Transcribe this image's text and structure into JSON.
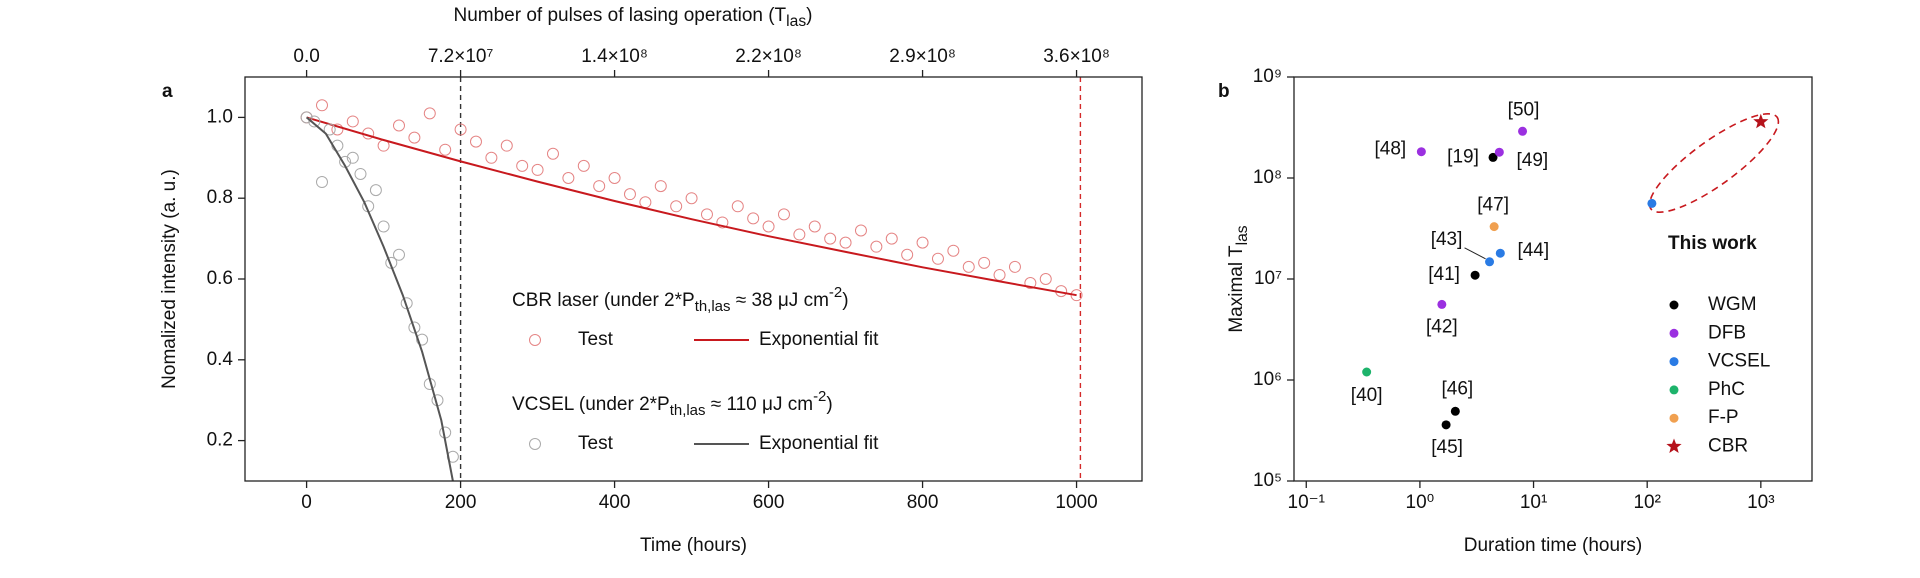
{
  "chart_data": [
    {
      "type": "scatter",
      "panel_label": "a",
      "xlabel": "Time (hours)",
      "ylabel": "Nomalized intensity (a. u.)",
      "x2label_parts": [
        "Number of pulses of lasing operation (T",
        "las",
        ")"
      ],
      "xlim": [
        -80,
        1085
      ],
      "xticks": [
        0,
        200,
        400,
        600,
        800,
        1000
      ],
      "x2lim": [
        -28800000,
        390600000
      ],
      "x2ticks": [
        {
          "value": 0,
          "label": "0.0"
        },
        {
          "value": 72000000,
          "label": "7.2×10⁷"
        },
        {
          "value": 144000000,
          "label": "1.4×10⁸"
        },
        {
          "value": 216000000,
          "label": "2.2×10⁸"
        },
        {
          "value": 288000000,
          "label": "2.9×10⁸"
        },
        {
          "value": 360000000,
          "label": "3.6×10⁸"
        }
      ],
      "ylim": [
        0.1,
        1.1
      ],
      "yticks": [
        0.2,
        0.4,
        0.6,
        0.8,
        {
          "value": 1,
          "label": "1.0"
        }
      ],
      "ref_lines": [
        {
          "x": 200,
          "color": "#333333"
        },
        {
          "x": 1005,
          "color": "#d42a2a"
        }
      ],
      "legend_groups": [
        [
          "CBR laser (under 2*P",
          "th,las",
          " ≈ 38 μJ cm",
          "-2",
          ")"
        ],
        [
          "VCSEL (under 2*P",
          "th,las",
          " ≈ 110 μJ cm",
          "-2",
          ")"
        ]
      ],
      "series": [
        {
          "name": "Test",
          "group": 0,
          "style": "open-circle",
          "color": "#e58585",
          "x": [
            0,
            20,
            40,
            60,
            80,
            100,
            120,
            140,
            160,
            180,
            200,
            220,
            240,
            260,
            280,
            300,
            320,
            340,
            360,
            380,
            400,
            420,
            440,
            460,
            480,
            500,
            520,
            540,
            560,
            580,
            600,
            620,
            640,
            660,
            680,
            700,
            720,
            740,
            760,
            780,
            800,
            820,
            840,
            860,
            880,
            900,
            920,
            940,
            960,
            980,
            1000
          ],
          "values": [
            1.0,
            1.03,
            0.97,
            0.99,
            0.96,
            0.93,
            0.98,
            0.95,
            1.01,
            0.92,
            0.97,
            0.94,
            0.9,
            0.93,
            0.88,
            0.87,
            0.91,
            0.85,
            0.88,
            0.83,
            0.85,
            0.81,
            0.79,
            0.83,
            0.78,
            0.8,
            0.76,
            0.74,
            0.78,
            0.75,
            0.73,
            0.76,
            0.71,
            0.73,
            0.7,
            0.69,
            0.72,
            0.68,
            0.7,
            0.66,
            0.69,
            0.65,
            0.67,
            0.63,
            0.64,
            0.61,
            0.63,
            0.59,
            0.6,
            0.57,
            0.56
          ]
        },
        {
          "name": "Exponential fit",
          "group": 0,
          "style": "line",
          "color": "#c8191e",
          "x": [
            0,
            100,
            200,
            300,
            400,
            500,
            600,
            700,
            800,
            900,
            1000
          ],
          "values": [
            1.0,
            0.944,
            0.891,
            0.841,
            0.793,
            0.748,
            0.706,
            0.667,
            0.629,
            0.594,
            0.56
          ]
        },
        {
          "name": "Test",
          "group": 1,
          "style": "open-circle",
          "color": "#aaaaaa",
          "x": [
            0,
            10,
            20,
            30,
            40,
            50,
            60,
            70,
            80,
            90,
            100,
            110,
            120,
            130,
            140,
            150,
            160,
            170,
            180,
            190
          ],
          "values": [
            1.0,
            0.99,
            0.84,
            0.97,
            0.93,
            0.89,
            0.9,
            0.86,
            0.78,
            0.82,
            0.73,
            0.64,
            0.66,
            0.54,
            0.48,
            0.45,
            0.34,
            0.3,
            0.22,
            0.16
          ]
        },
        {
          "name": "Exponential fit",
          "group": 1,
          "style": "line",
          "color": "#555555",
          "x": [
            0,
            25,
            50,
            75,
            100,
            125,
            150,
            175,
            190
          ],
          "values": [
            1.0,
            0.96,
            0.88,
            0.79,
            0.68,
            0.56,
            0.42,
            0.25,
            0.1
          ]
        }
      ]
    },
    {
      "type": "scatter",
      "panel_label": "b",
      "xlabel": "Duration time (hours)",
      "ylabel_parts": [
        "Maximal T",
        "las"
      ],
      "log_x": true,
      "log_y": true,
      "xlim": [
        0.078,
        2820
      ],
      "xticks": [
        {
          "value": 0.1,
          "label": "10⁻¹"
        },
        {
          "value": 1,
          "label": "10⁰"
        },
        {
          "value": 10,
          "label": "10¹"
        },
        {
          "value": 100,
          "label": "10²"
        },
        {
          "value": 1000,
          "label": "10³"
        }
      ],
      "ylim": [
        100000,
        1000000000
      ],
      "yticks": [
        {
          "value": 100000,
          "label": "10⁵"
        },
        {
          "value": 1000000,
          "label": "10⁶"
        },
        {
          "value": 10000000,
          "label": "10⁷"
        },
        {
          "value": 100000000,
          "label": "10⁸"
        },
        {
          "value": 1000000000,
          "label": "10⁹"
        }
      ],
      "annotation": "This work",
      "series": [
        {
          "name": "WGM",
          "color": "#000000",
          "marker": "dot",
          "x": [
            4.4,
            3.06,
            2.05,
            1.7
          ],
          "values": [
            160000000,
            10900000,
            490000,
            360000
          ],
          "point_labels": [
            "[19]",
            "[41]",
            "[46]",
            "[45]"
          ]
        },
        {
          "name": "DFB",
          "color": "#9b30e0",
          "marker": "dot",
          "x": [
            1.03,
            5.0,
            8.0,
            1.56
          ],
          "values": [
            182000000,
            180000000,
            290000000,
            5600000
          ],
          "point_labels": [
            "[48]",
            "[49]",
            "[50]",
            "[42]"
          ]
        },
        {
          "name": "VCSEL",
          "color": "#2a7be4",
          "marker": "dot",
          "x": [
            4.1,
            5.1,
            110
          ],
          "values": [
            14800000,
            18000000,
            56000000
          ],
          "point_labels": [
            "[43]",
            "[44]",
            null
          ]
        },
        {
          "name": "PhC",
          "color": "#1db36b",
          "marker": "dot",
          "x": [
            0.34
          ],
          "values": [
            1200000
          ],
          "point_labels": [
            "[40]"
          ]
        },
        {
          "name": "F-P",
          "color": "#f0a050",
          "marker": "dot",
          "x": [
            4.5
          ],
          "values": [
            33000000
          ],
          "point_labels": [
            "[47]"
          ]
        },
        {
          "name": "CBR",
          "color": "#b5121b",
          "marker": "star",
          "x": [
            1000
          ],
          "values": [
            360000000
          ],
          "point_labels": [
            null
          ]
        }
      ]
    }
  ]
}
